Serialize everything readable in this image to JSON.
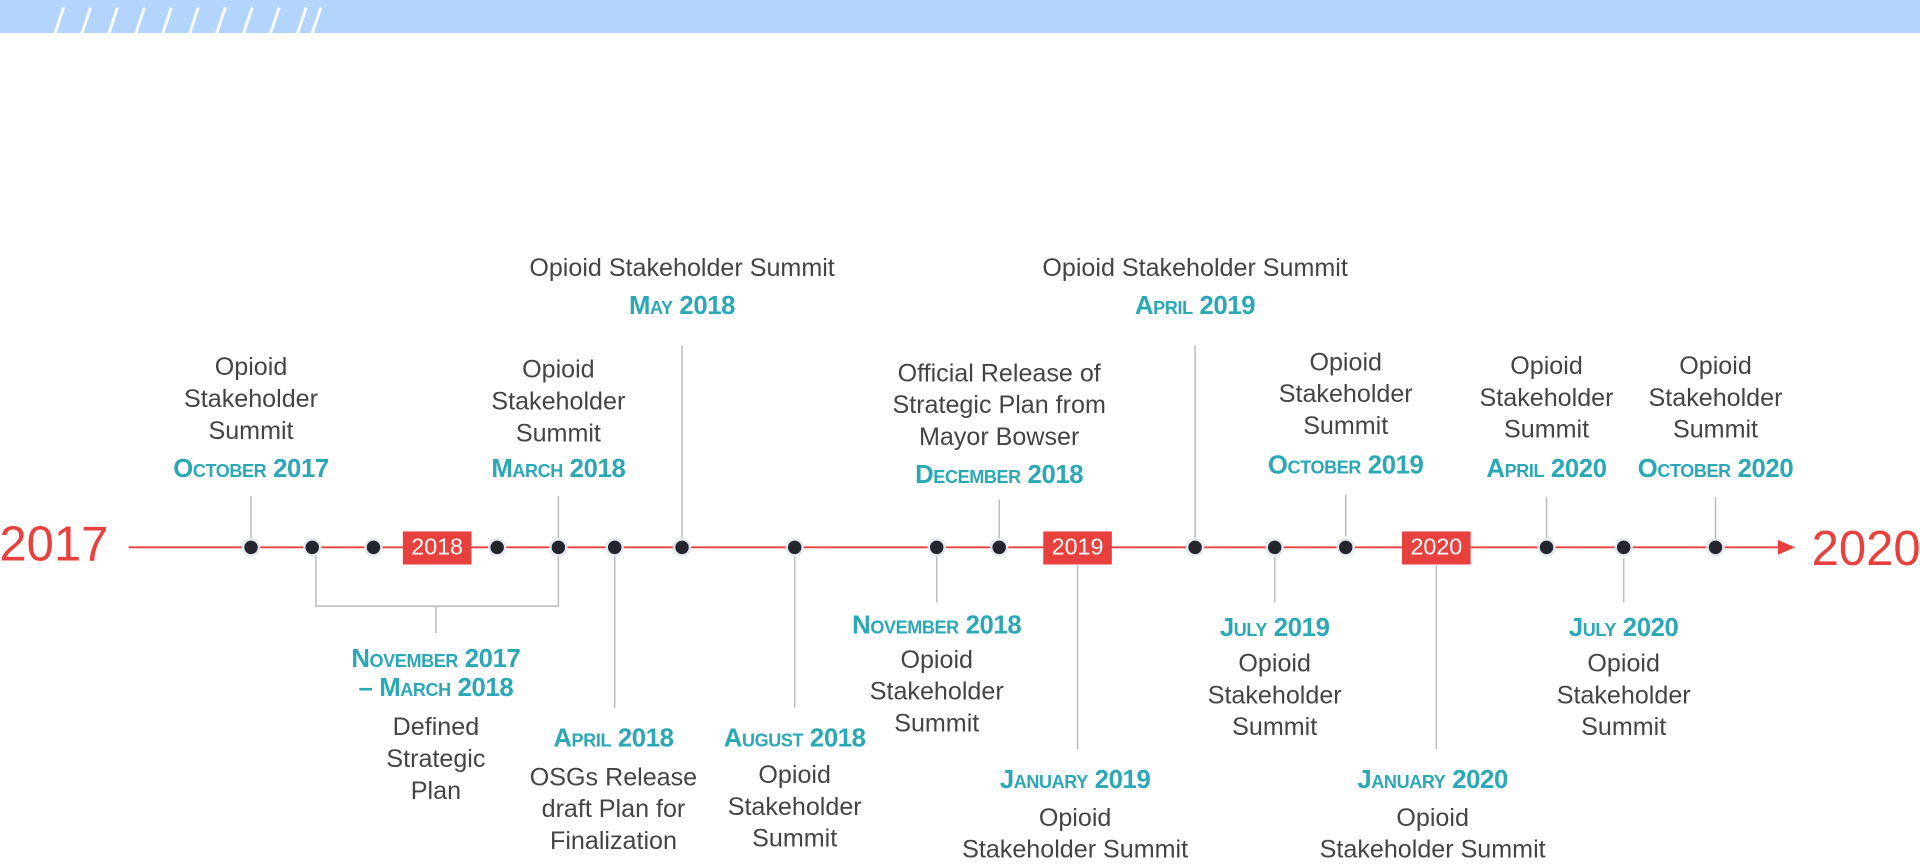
{
  "timeline": {
    "start_label": "2017",
    "end_label": "2020",
    "year_markers": [
      "2018",
      "2019",
      "2020"
    ],
    "events": [
      {
        "date_lines": [
          "October 2017"
        ],
        "text_lines": [
          "Opioid",
          "Stakeholder",
          "Summit"
        ]
      },
      {
        "date_lines": [
          "November 2017",
          "– March 2018"
        ],
        "text_lines": [
          "Defined",
          "Strategic",
          "Plan"
        ]
      },
      {
        "date_lines": [
          "March 2018"
        ],
        "text_lines": [
          "Opioid",
          "Stakeholder",
          "Summit"
        ]
      },
      {
        "date_lines": [
          "April 2018"
        ],
        "text_lines": [
          "OSGs Release",
          "draft Plan for",
          "Finalization"
        ]
      },
      {
        "date_lines": [
          "May 2018"
        ],
        "text_lines": [
          "Opioid Stakeholder Summit"
        ]
      },
      {
        "date_lines": [
          "August 2018"
        ],
        "text_lines": [
          "Opioid",
          "Stakeholder",
          "Summit"
        ]
      },
      {
        "date_lines": [
          "November 2018"
        ],
        "text_lines": [
          "Opioid",
          "Stakeholder",
          "Summit"
        ]
      },
      {
        "date_lines": [
          "December 2018"
        ],
        "text_lines": [
          "Official Release of",
          "Strategic Plan from",
          "Mayor Bowser"
        ]
      },
      {
        "date_lines": [
          "January 2019"
        ],
        "text_lines": [
          "Opioid",
          "Stakeholder Summit"
        ]
      },
      {
        "date_lines": [
          "April 2019"
        ],
        "text_lines": [
          "Opioid Stakeholder Summit"
        ]
      },
      {
        "date_lines": [
          "July 2019"
        ],
        "text_lines": [
          "Opioid",
          "Stakeholder",
          "Summit"
        ]
      },
      {
        "date_lines": [
          "October 2019"
        ],
        "text_lines": [
          "Opioid",
          "Stakeholder",
          "Summit"
        ]
      },
      {
        "date_lines": [
          "January 2020"
        ],
        "text_lines": [
          "Opioid",
          "Stakeholder Summit"
        ]
      },
      {
        "date_lines": [
          "April 2020"
        ],
        "text_lines": [
          "Opioid",
          "Stakeholder",
          "Summit"
        ]
      },
      {
        "date_lines": [
          "July 2020"
        ],
        "text_lines": [
          "Opioid",
          "Stakeholder",
          "Summit"
        ]
      },
      {
        "date_lines": [
          "October 2020"
        ],
        "text_lines": [
          "Opioid",
          "Stakeholder",
          "Summit"
        ]
      }
    ]
  }
}
